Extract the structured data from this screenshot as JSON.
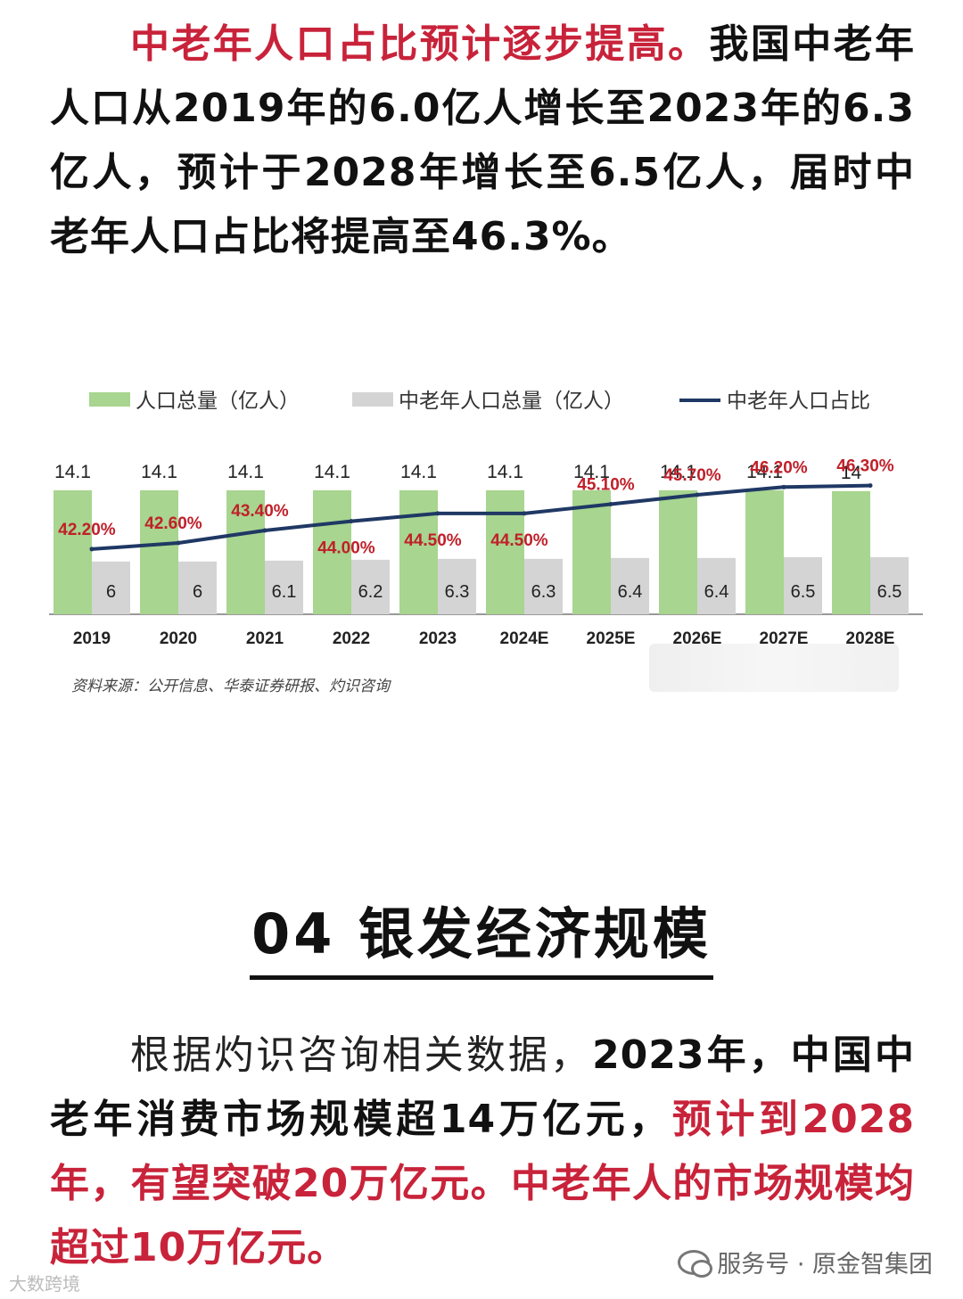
{
  "intro": {
    "highlight": "中老年人口占比预计逐步提高。",
    "text": "我国中老年人口从2019年的6.0亿人增长至2023年的6.3亿人，预计于2028年增长至6.5亿人，届时中老年人口占比将提高至46.3%。"
  },
  "chart_data": {
    "type": "bar",
    "categories": [
      "2019",
      "2020",
      "2021",
      "2022",
      "2023",
      "2024E",
      "2025E",
      "2026E",
      "2027E",
      "2028E"
    ],
    "series": [
      {
        "name": "人口总量（亿人）",
        "kind": "bar",
        "color": "#a8d58f",
        "values": [
          14.1,
          14.1,
          14.1,
          14.1,
          14.1,
          14.1,
          14.1,
          14.1,
          14.1,
          14
        ],
        "labels": [
          "14.1",
          "14.1",
          "14.1",
          "14.1",
          "14.1",
          "14.1",
          "14.1",
          "14.1",
          "14.1",
          "14"
        ]
      },
      {
        "name": "中老年人口总量（亿人）",
        "kind": "bar",
        "color": "#d4d4d4",
        "values": [
          6,
          6,
          6.1,
          6.2,
          6.3,
          6.3,
          6.4,
          6.4,
          6.5,
          6.5
        ],
        "labels": [
          "6",
          "6",
          "6.1",
          "6.2",
          "6.3",
          "6.3",
          "6.4",
          "6.4",
          "6.5",
          "6.5"
        ]
      },
      {
        "name": "中老年人口占比",
        "kind": "line",
        "color": "#1f3864",
        "values": [
          42.2,
          42.6,
          43.4,
          44.0,
          44.5,
          44.5,
          45.1,
          45.7,
          46.2,
          46.3
        ],
        "labels": [
          "42.20%",
          "42.60%",
          "43.40%",
          "44.00%",
          "44.50%",
          "44.50%",
          "45.10%",
          "45.70%",
          "46.20%",
          "46.30%"
        ]
      }
    ],
    "ylim_bar": [
      0,
      15
    ],
    "ylim_line": [
      38,
      48
    ],
    "label_color": "#c0202a",
    "legend_position": "top"
  },
  "source": "资料来源：公开信息、华泰证券研报、灼识咨询",
  "section": {
    "title": "04 银发经济规模"
  },
  "market": {
    "lead": "根据灼识咨询相关数据，",
    "text": "2023年，中国中老年消费市场规模超14万亿元，",
    "highlight": "预计到2028年，有望突破20万亿元。中老年人的市场规模均超过10万亿元。"
  },
  "watermark": {
    "left": "大数跨境",
    "right": "服务号 · 原金智集团"
  }
}
